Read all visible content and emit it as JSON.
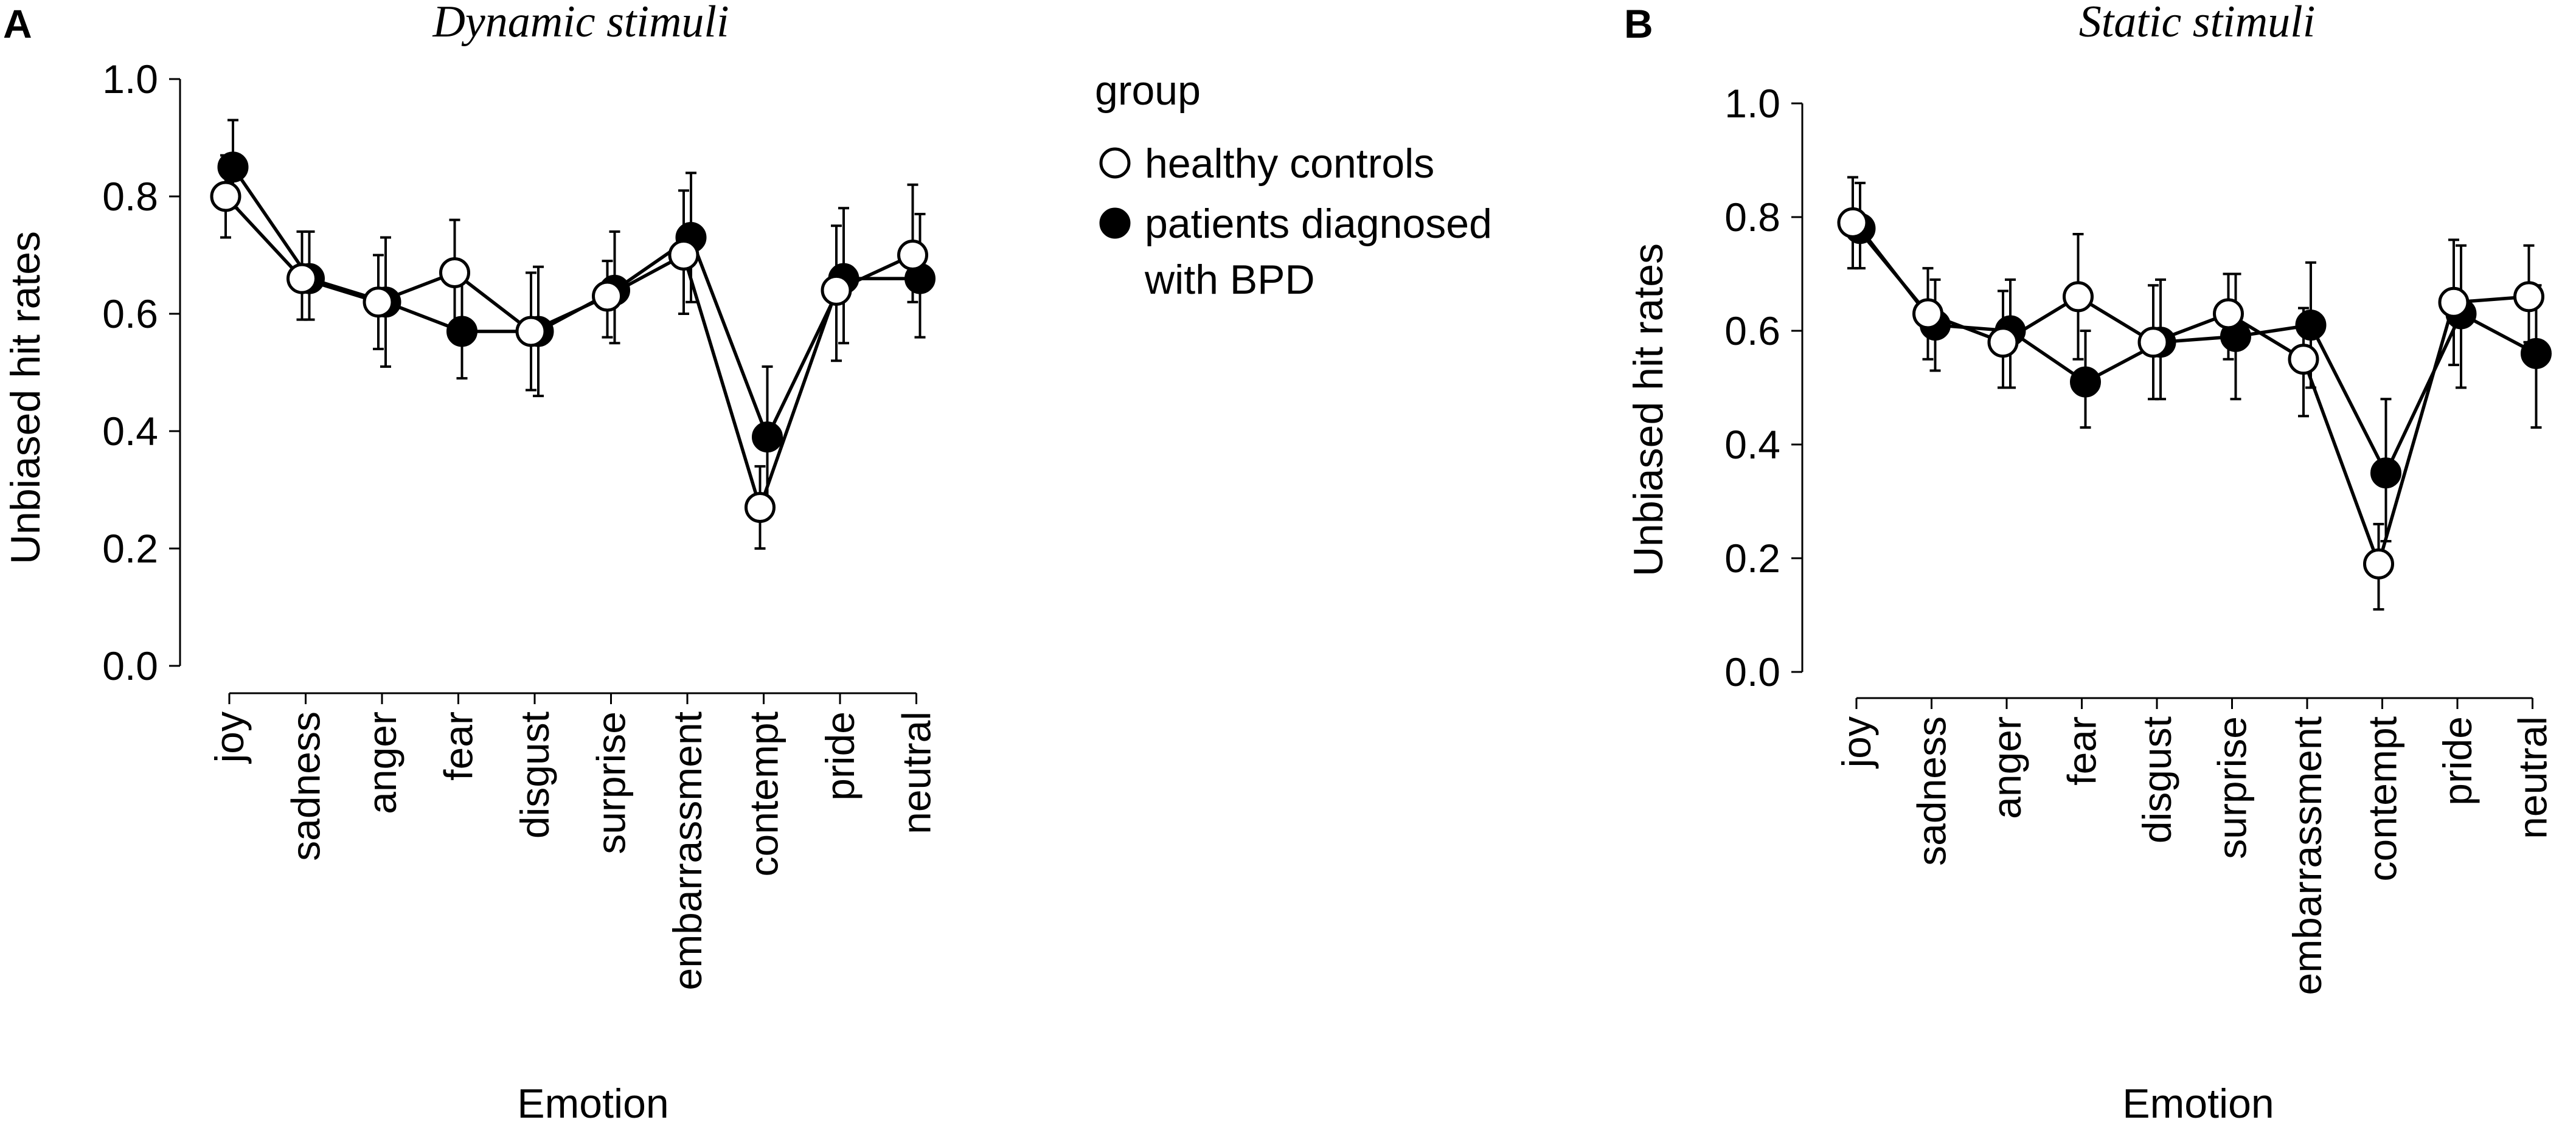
{
  "legend": {
    "title": "group",
    "entries": [
      {
        "lines": [
          "healthy controls"
        ],
        "fill": "#ffffff"
      },
      {
        "lines": [
          "patients diagnosed",
          "with BPD"
        ],
        "fill": "#000000"
      }
    ]
  },
  "chart_data": [
    {
      "panel": "A",
      "type": "line",
      "title": "Dynamic stimuli",
      "xlabel": "Emotion",
      "ylabel": "Unbiased hit rates",
      "ylim": [
        0.0,
        1.0
      ],
      "yticks": [
        "0.0",
        "0.2",
        "0.4",
        "0.6",
        "0.8",
        "1.0"
      ],
      "categories": [
        "joy",
        "sadness",
        "anger",
        "fear",
        "disgust",
        "surprise",
        "embarrassment",
        "contempt",
        "pride",
        "neutral"
      ],
      "series": [
        {
          "name": "healthy controls",
          "marker": "open",
          "values": [
            0.8,
            0.66,
            0.62,
            0.67,
            0.57,
            0.63,
            0.7,
            0.27,
            0.64,
            0.7
          ],
          "err_low": [
            0.73,
            0.59,
            0.54,
            0.58,
            0.47,
            0.56,
            0.6,
            0.2,
            0.52,
            0.62
          ],
          "err_high": [
            0.87,
            0.74,
            0.7,
            0.76,
            0.67,
            0.69,
            0.81,
            0.34,
            0.75,
            0.82
          ]
        },
        {
          "name": "patients diagnosed with BPD",
          "marker": "filled",
          "values": [
            0.85,
            0.66,
            0.62,
            0.57,
            0.57,
            0.64,
            0.73,
            0.39,
            0.66,
            0.66
          ],
          "err_low": [
            0.78,
            0.59,
            0.51,
            0.49,
            0.46,
            0.55,
            0.62,
            0.27,
            0.55,
            0.56
          ],
          "err_high": [
            0.93,
            0.74,
            0.73,
            0.66,
            0.68,
            0.74,
            0.84,
            0.51,
            0.78,
            0.77
          ]
        }
      ]
    },
    {
      "panel": "B",
      "type": "line",
      "title": "Static stimuli",
      "xlabel": "Emotion",
      "ylabel": "Unbiased hit rates",
      "ylim": [
        0.0,
        1.0
      ],
      "yticks": [
        "0.0",
        "0.2",
        "0.4",
        "0.6",
        "0.8",
        "1.0"
      ],
      "categories": [
        "joy",
        "sadness",
        "anger",
        "fear",
        "disgust",
        "surprise",
        "embarrassment",
        "contempt",
        "pride",
        "neutral"
      ],
      "series": [
        {
          "name": "healthy controls",
          "marker": "open",
          "values": [
            0.79,
            0.63,
            0.58,
            0.66,
            0.58,
            0.63,
            0.55,
            0.19,
            0.65,
            0.66
          ],
          "err_low": [
            0.71,
            0.55,
            0.5,
            0.55,
            0.48,
            0.55,
            0.45,
            0.11,
            0.54,
            0.58
          ],
          "err_high": [
            0.87,
            0.71,
            0.67,
            0.77,
            0.68,
            0.7,
            0.64,
            0.26,
            0.76,
            0.75
          ]
        },
        {
          "name": "patients diagnosed with BPD",
          "marker": "filled",
          "values": [
            0.78,
            0.61,
            0.6,
            0.51,
            0.58,
            0.59,
            0.61,
            0.35,
            0.63,
            0.56
          ],
          "err_low": [
            0.71,
            0.53,
            0.5,
            0.43,
            0.48,
            0.48,
            0.5,
            0.23,
            0.5,
            0.43
          ],
          "err_high": [
            0.86,
            0.69,
            0.69,
            0.6,
            0.69,
            0.7,
            0.72,
            0.48,
            0.75,
            0.68
          ]
        }
      ]
    }
  ]
}
